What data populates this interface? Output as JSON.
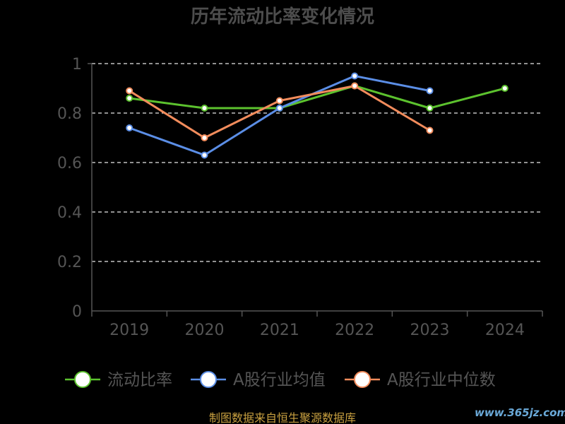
{
  "chart_data": {
    "type": "line",
    "title": "历年流动比率变化情况",
    "categories": [
      "2019",
      "2020",
      "2021",
      "2022",
      "2023",
      "2024"
    ],
    "y_ticks": [
      "0",
      "0.2",
      "0.4",
      "0.6",
      "0.8",
      "1"
    ],
    "ylim": [
      0,
      1
    ],
    "grid": true,
    "grid_style": "dashed",
    "legend_position": "bottom",
    "series": [
      {
        "name": "流动比率",
        "color": "#5cc22e",
        "values": [
          0.86,
          0.82,
          0.82,
          0.91,
          0.82,
          0.9
        ]
      },
      {
        "name": "A股行业均值",
        "color": "#5b8ee6",
        "values": [
          0.74,
          0.63,
          0.82,
          0.95,
          0.89,
          null
        ]
      },
      {
        "name": "A股行业中位数",
        "color": "#f28c5c",
        "values": [
          0.89,
          0.7,
          0.85,
          0.91,
          0.73,
          null
        ]
      }
    ]
  },
  "footer": {
    "source": "制图数据来自恒生聚源数据库",
    "watermark": "www.365jz.com"
  }
}
